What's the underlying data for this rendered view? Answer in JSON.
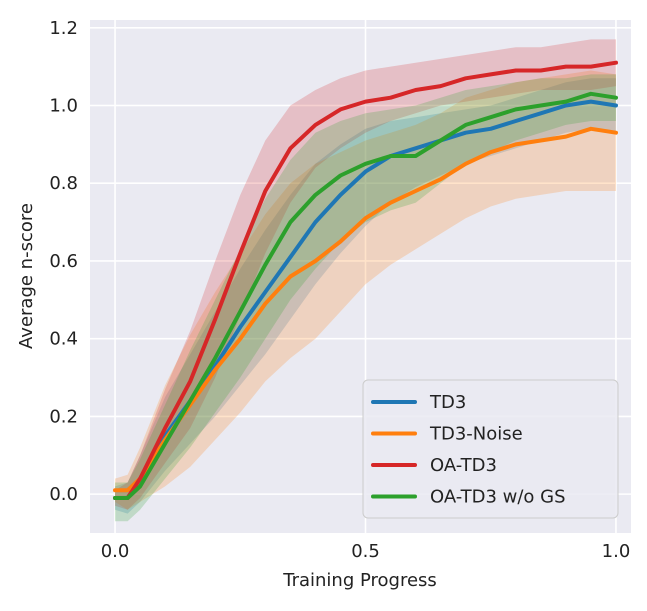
{
  "chart_data": {
    "type": "line",
    "title": "",
    "xlabel": "Training Progress",
    "ylabel": "Average n-score",
    "xlim": [
      -0.05,
      1.03
    ],
    "ylim": [
      -0.1,
      1.22
    ],
    "xticks": [
      0.0,
      0.5,
      1.0
    ],
    "xtick_labels": [
      "0.0",
      "0.5",
      "1.0"
    ],
    "yticks": [
      0.0,
      0.2,
      0.4,
      0.6,
      0.8,
      1.0,
      1.2
    ],
    "ytick_labels": [
      "0.0",
      "0.2",
      "0.4",
      "0.6",
      "0.8",
      "1.0",
      "1.2"
    ],
    "grid": true,
    "legend_position": "bottom-right",
    "x": [
      0.0,
      0.025,
      0.05,
      0.1,
      0.15,
      0.2,
      0.25,
      0.3,
      0.35,
      0.4,
      0.45,
      0.5,
      0.55,
      0.6,
      0.65,
      0.7,
      0.75,
      0.8,
      0.85,
      0.9,
      0.95,
      1.0
    ],
    "series": [
      {
        "name": "TD3",
        "color": "#1f77b4",
        "mean": [
          -0.01,
          -0.01,
          0.04,
          0.15,
          0.24,
          0.33,
          0.43,
          0.52,
          0.61,
          0.7,
          0.77,
          0.83,
          0.87,
          0.89,
          0.91,
          0.93,
          0.94,
          0.96,
          0.98,
          1.0,
          1.01,
          1.0
        ],
        "lower": [
          -0.04,
          -0.05,
          -0.02,
          0.06,
          0.13,
          0.2,
          0.28,
          0.36,
          0.45,
          0.54,
          0.62,
          0.69,
          0.75,
          0.79,
          0.82,
          0.85,
          0.87,
          0.89,
          0.91,
          0.93,
          0.94,
          0.93
        ],
        "upper": [
          0.02,
          0.03,
          0.1,
          0.25,
          0.36,
          0.47,
          0.58,
          0.68,
          0.77,
          0.85,
          0.9,
          0.94,
          0.96,
          0.97,
          0.98,
          0.99,
          1.0,
          1.02,
          1.04,
          1.06,
          1.07,
          1.07
        ]
      },
      {
        "name": "TD3-Noise",
        "color": "#ff7f0e",
        "mean": [
          0.01,
          0.01,
          0.04,
          0.14,
          0.23,
          0.32,
          0.4,
          0.49,
          0.56,
          0.6,
          0.65,
          0.71,
          0.75,
          0.78,
          0.81,
          0.85,
          0.88,
          0.9,
          0.91,
          0.92,
          0.94,
          0.93
        ],
        "lower": [
          -0.02,
          -0.04,
          -0.02,
          0.02,
          0.07,
          0.14,
          0.21,
          0.29,
          0.35,
          0.4,
          0.47,
          0.54,
          0.59,
          0.63,
          0.67,
          0.71,
          0.74,
          0.76,
          0.77,
          0.78,
          0.78,
          0.78
        ],
        "upper": [
          0.04,
          0.05,
          0.12,
          0.28,
          0.41,
          0.52,
          0.62,
          0.72,
          0.8,
          0.85,
          0.88,
          0.91,
          0.93,
          0.95,
          0.98,
          1.02,
          1.04,
          1.06,
          1.07,
          1.08,
          1.09,
          1.08
        ]
      },
      {
        "name": "OA-TD3",
        "color": "#d62728",
        "mean": [
          -0.01,
          -0.01,
          0.04,
          0.17,
          0.29,
          0.45,
          0.62,
          0.78,
          0.89,
          0.95,
          0.99,
          1.01,
          1.02,
          1.04,
          1.05,
          1.07,
          1.08,
          1.09,
          1.09,
          1.1,
          1.1,
          1.11
        ],
        "lower": [
          -0.03,
          -0.04,
          -0.01,
          0.08,
          0.17,
          0.3,
          0.46,
          0.62,
          0.75,
          0.84,
          0.89,
          0.93,
          0.96,
          0.98,
          1.0,
          1.01,
          1.02,
          1.03,
          1.04,
          1.04,
          1.04,
          1.05
        ],
        "upper": [
          0.01,
          0.03,
          0.1,
          0.27,
          0.42,
          0.6,
          0.77,
          0.91,
          1.0,
          1.04,
          1.07,
          1.09,
          1.1,
          1.11,
          1.12,
          1.13,
          1.14,
          1.15,
          1.15,
          1.16,
          1.17,
          1.17
        ]
      },
      {
        "name": "OA-TD3 w/o GS",
        "color": "#2ca02c",
        "mean": [
          -0.01,
          -0.01,
          0.02,
          0.13,
          0.24,
          0.35,
          0.47,
          0.59,
          0.7,
          0.77,
          0.82,
          0.85,
          0.87,
          0.87,
          0.91,
          0.95,
          0.97,
          0.99,
          1.0,
          1.01,
          1.03,
          1.02
        ],
        "lower": [
          -0.07,
          -0.07,
          -0.04,
          0.04,
          0.12,
          0.21,
          0.3,
          0.4,
          0.5,
          0.58,
          0.65,
          0.7,
          0.73,
          0.75,
          0.8,
          0.85,
          0.88,
          0.91,
          0.93,
          0.95,
          0.96,
          0.96
        ],
        "upper": [
          0.03,
          0.03,
          0.09,
          0.23,
          0.37,
          0.5,
          0.63,
          0.76,
          0.86,
          0.93,
          0.96,
          0.98,
          0.99,
          1.0,
          1.02,
          1.04,
          1.05,
          1.06,
          1.07,
          1.07,
          1.08,
          1.08
        ]
      }
    ]
  }
}
